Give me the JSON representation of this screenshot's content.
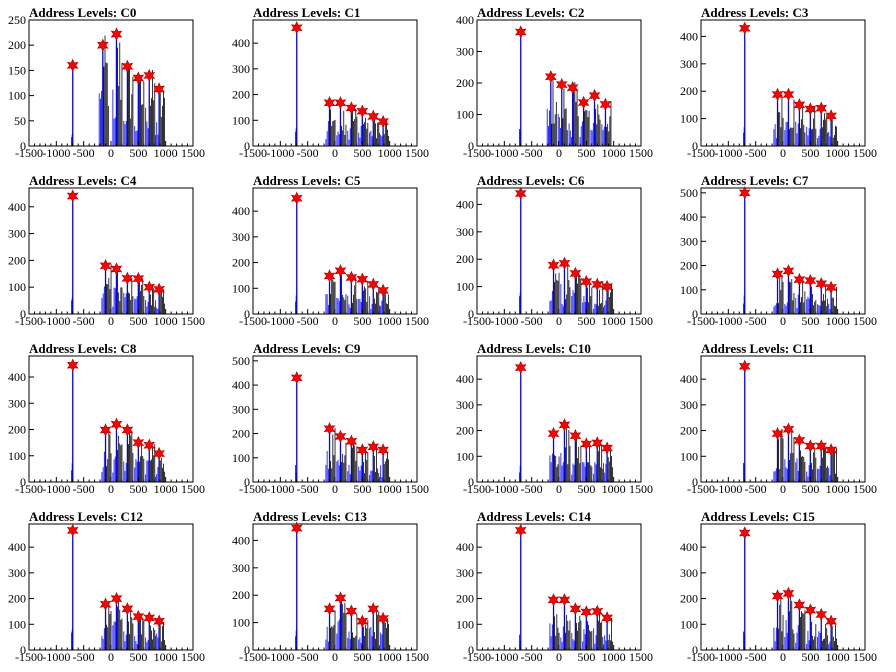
{
  "chart_data": {
    "type": "histogram-grid",
    "x_ticks": [
      -1500,
      -1000,
      -500,
      0,
      500,
      1000,
      1500
    ],
    "xlim": [
      -1500,
      1500
    ],
    "colors": {
      "histogram": "#0000ff",
      "overlay": "#000000",
      "marker": "#ff0000",
      "frame": "#000000"
    },
    "marker_icon": "star-marker-icon",
    "panels": [
      {
        "title": "Address Levels: C0",
        "ylim": [
          0,
          250
        ],
        "y_ticks": [
          0,
          50,
          100,
          150,
          200,
          250
        ],
        "peaks": [
          {
            "x": -700,
            "y": 160
          },
          {
            "x": -150,
            "y": 200
          },
          {
            "x": 100,
            "y": 222
          },
          {
            "x": 300,
            "y": 158
          },
          {
            "x": 500,
            "y": 135
          },
          {
            "x": 700,
            "y": 140
          },
          {
            "x": 880,
            "y": 113
          }
        ]
      },
      {
        "title": "Address Levels: C1",
        "ylim": [
          0,
          490
        ],
        "y_ticks": [
          0,
          100,
          200,
          300,
          400
        ],
        "peaks": [
          {
            "x": -700,
            "y": 460
          },
          {
            "x": -100,
            "y": 168
          },
          {
            "x": 100,
            "y": 168
          },
          {
            "x": 300,
            "y": 148
          },
          {
            "x": 500,
            "y": 135
          },
          {
            "x": 700,
            "y": 115
          },
          {
            "x": 880,
            "y": 95
          }
        ]
      },
      {
        "title": "Address Levels: C2",
        "ylim": [
          0,
          400
        ],
        "y_ticks": [
          0,
          100,
          200,
          300,
          400
        ],
        "peaks": [
          {
            "x": -700,
            "y": 362
          },
          {
            "x": -150,
            "y": 220
          },
          {
            "x": 50,
            "y": 195
          },
          {
            "x": 250,
            "y": 185
          },
          {
            "x": 450,
            "y": 138
          },
          {
            "x": 650,
            "y": 160
          },
          {
            "x": 850,
            "y": 132
          }
        ]
      },
      {
        "title": "Address Levels: C3",
        "ylim": [
          0,
          460
        ],
        "y_ticks": [
          0,
          100,
          200,
          300,
          400
        ],
        "peaks": [
          {
            "x": -700,
            "y": 430
          },
          {
            "x": -100,
            "y": 188
          },
          {
            "x": 100,
            "y": 188
          },
          {
            "x": 300,
            "y": 150
          },
          {
            "x": 500,
            "y": 135
          },
          {
            "x": 700,
            "y": 138
          },
          {
            "x": 880,
            "y": 110
          }
        ]
      },
      {
        "title": "Address Levels: C4",
        "ylim": [
          0,
          470
        ],
        "y_ticks": [
          0,
          100,
          200,
          300,
          400
        ],
        "peaks": [
          {
            "x": -700,
            "y": 440
          },
          {
            "x": -100,
            "y": 180
          },
          {
            "x": 100,
            "y": 168
          },
          {
            "x": 300,
            "y": 133
          },
          {
            "x": 500,
            "y": 132
          },
          {
            "x": 700,
            "y": 100
          },
          {
            "x": 880,
            "y": 92
          }
        ]
      },
      {
        "title": "Address Levels: C5",
        "ylim": [
          0,
          490
        ],
        "y_ticks": [
          0,
          100,
          200,
          300,
          400
        ],
        "peaks": [
          {
            "x": -700,
            "y": 450
          },
          {
            "x": -100,
            "y": 148
          },
          {
            "x": 100,
            "y": 168
          },
          {
            "x": 300,
            "y": 142
          },
          {
            "x": 500,
            "y": 135
          },
          {
            "x": 700,
            "y": 115
          },
          {
            "x": 880,
            "y": 92
          }
        ]
      },
      {
        "title": "Address Levels: C6",
        "ylim": [
          0,
          460
        ],
        "y_ticks": [
          0,
          100,
          200,
          300,
          400
        ],
        "peaks": [
          {
            "x": -700,
            "y": 440
          },
          {
            "x": -100,
            "y": 178
          },
          {
            "x": 100,
            "y": 185
          },
          {
            "x": 300,
            "y": 148
          },
          {
            "x": 500,
            "y": 118
          },
          {
            "x": 700,
            "y": 108
          },
          {
            "x": 880,
            "y": 100
          }
        ]
      },
      {
        "title": "Address Levels: C7",
        "ylim": [
          0,
          520
        ],
        "y_ticks": [
          0,
          100,
          200,
          300,
          400,
          500
        ],
        "peaks": [
          {
            "x": -700,
            "y": 500
          },
          {
            "x": -100,
            "y": 165
          },
          {
            "x": 100,
            "y": 178
          },
          {
            "x": 300,
            "y": 142
          },
          {
            "x": 500,
            "y": 138
          },
          {
            "x": 700,
            "y": 125
          },
          {
            "x": 880,
            "y": 110
          }
        ]
      },
      {
        "title": "Address Levels: C8",
        "ylim": [
          0,
          480
        ],
        "y_ticks": [
          0,
          100,
          200,
          300,
          400
        ],
        "peaks": [
          {
            "x": -700,
            "y": 445
          },
          {
            "x": -100,
            "y": 198
          },
          {
            "x": 100,
            "y": 220
          },
          {
            "x": 300,
            "y": 198
          },
          {
            "x": 500,
            "y": 150
          },
          {
            "x": 700,
            "y": 140
          },
          {
            "x": 880,
            "y": 108
          }
        ]
      },
      {
        "title": "Address Levels: C9",
        "ylim": [
          0,
          520
        ],
        "y_ticks": [
          0,
          100,
          200,
          300,
          400,
          500
        ],
        "peaks": [
          {
            "x": -700,
            "y": 430
          },
          {
            "x": -100,
            "y": 220
          },
          {
            "x": 100,
            "y": 188
          },
          {
            "x": 300,
            "y": 168
          },
          {
            "x": 500,
            "y": 132
          },
          {
            "x": 700,
            "y": 145
          },
          {
            "x": 880,
            "y": 132
          }
        ]
      },
      {
        "title": "Address Levels: C10",
        "ylim": [
          0,
          490
        ],
        "y_ticks": [
          0,
          100,
          200,
          300,
          400
        ],
        "peaks": [
          {
            "x": -700,
            "y": 445
          },
          {
            "x": -100,
            "y": 188
          },
          {
            "x": 100,
            "y": 222
          },
          {
            "x": 300,
            "y": 180
          },
          {
            "x": 500,
            "y": 148
          },
          {
            "x": 700,
            "y": 152
          },
          {
            "x": 880,
            "y": 132
          }
        ]
      },
      {
        "title": "Address Levels: C11",
        "ylim": [
          0,
          490
        ],
        "y_ticks": [
          0,
          100,
          200,
          300,
          400
        ],
        "peaks": [
          {
            "x": -700,
            "y": 450
          },
          {
            "x": -100,
            "y": 188
          },
          {
            "x": 100,
            "y": 205
          },
          {
            "x": 300,
            "y": 162
          },
          {
            "x": 500,
            "y": 140
          },
          {
            "x": 700,
            "y": 140
          },
          {
            "x": 880,
            "y": 125
          }
        ]
      },
      {
        "title": "Address Levels: C12",
        "ylim": [
          0,
          490
        ],
        "y_ticks": [
          0,
          100,
          200,
          300,
          400
        ],
        "peaks": [
          {
            "x": -700,
            "y": 465
          },
          {
            "x": -100,
            "y": 178
          },
          {
            "x": 100,
            "y": 200
          },
          {
            "x": 300,
            "y": 160
          },
          {
            "x": 500,
            "y": 130
          },
          {
            "x": 700,
            "y": 125
          },
          {
            "x": 880,
            "y": 112
          }
        ]
      },
      {
        "title": "Address Levels: C13",
        "ylim": [
          0,
          460
        ],
        "y_ticks": [
          0,
          100,
          200,
          300,
          400
        ],
        "peaks": [
          {
            "x": -700,
            "y": 445
          },
          {
            "x": -100,
            "y": 150
          },
          {
            "x": 100,
            "y": 190
          },
          {
            "x": 300,
            "y": 142
          },
          {
            "x": 500,
            "y": 105
          },
          {
            "x": 700,
            "y": 150
          },
          {
            "x": 880,
            "y": 115
          }
        ]
      },
      {
        "title": "Address Levels: C14",
        "ylim": [
          0,
          490
        ],
        "y_ticks": [
          0,
          100,
          200,
          300,
          400
        ],
        "peaks": [
          {
            "x": -700,
            "y": 465
          },
          {
            "x": -100,
            "y": 195
          },
          {
            "x": 100,
            "y": 195
          },
          {
            "x": 300,
            "y": 160
          },
          {
            "x": 500,
            "y": 148
          },
          {
            "x": 700,
            "y": 150
          },
          {
            "x": 880,
            "y": 125
          }
        ]
      },
      {
        "title": "Address Levels: C15",
        "ylim": [
          0,
          490
        ],
        "y_ticks": [
          0,
          100,
          200,
          300,
          400
        ],
        "peaks": [
          {
            "x": -700,
            "y": 455
          },
          {
            "x": -100,
            "y": 210
          },
          {
            "x": 100,
            "y": 220
          },
          {
            "x": 300,
            "y": 175
          },
          {
            "x": 500,
            "y": 155
          },
          {
            "x": 700,
            "y": 138
          },
          {
            "x": 880,
            "y": 112
          }
        ]
      }
    ]
  }
}
